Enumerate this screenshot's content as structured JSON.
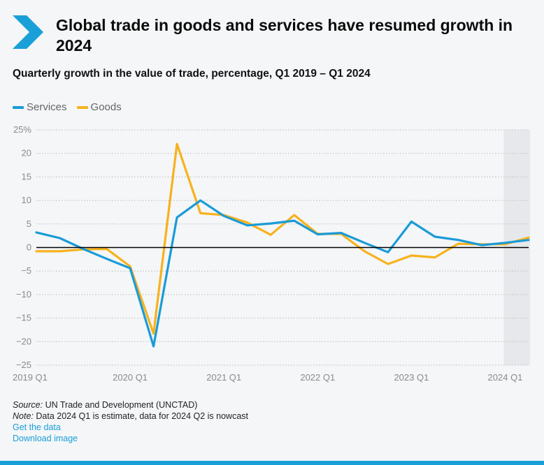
{
  "header": {
    "title": "Global trade in goods and services have resumed growth in 2024",
    "subtitle": "Quarterly growth in the value of trade, percentage, Q1 2019 – Q1 2024"
  },
  "legend": [
    {
      "label": "Services",
      "color": "#1a9bd7"
    },
    {
      "label": "Goods",
      "color": "#f7b21c"
    }
  ],
  "chart_data": {
    "type": "line",
    "title": "Quarterly growth in the value of trade, percentage, Q1 2019 – Q1 2024",
    "x": [
      "2019 Q1",
      "2019 Q2",
      "2019 Q3",
      "2019 Q4",
      "2020 Q1",
      "2020 Q2",
      "2020 Q3",
      "2020 Q4",
      "2021 Q1",
      "2021 Q2",
      "2021 Q3",
      "2021 Q4",
      "2022 Q1",
      "2022 Q2",
      "2022 Q3",
      "2022 Q4",
      "2023 Q1",
      "2023 Q2",
      "2023 Q3",
      "2023 Q4",
      "2024 Q1",
      "2024 Q2"
    ],
    "series": [
      {
        "name": "Services",
        "color": "#1a9bd7",
        "values": [
          3.2,
          2.0,
          -0.3,
          -2.4,
          -4.4,
          -21.0,
          6.4,
          10.0,
          6.7,
          4.7,
          5.1,
          5.7,
          2.8,
          3.1,
          1.0,
          -1.0,
          5.5,
          2.3,
          1.6,
          0.5,
          1.0,
          1.6
        ]
      },
      {
        "name": "Goods",
        "color": "#f7b21c",
        "values": [
          -0.8,
          -0.8,
          -0.4,
          -0.3,
          -4.0,
          -18.3,
          22.0,
          7.3,
          6.9,
          5.3,
          2.7,
          6.9,
          2.9,
          2.9,
          -0.8,
          -3.5,
          -1.7,
          -2.1,
          0.8,
          0.7,
          0.7,
          2.1
        ]
      }
    ],
    "xticks": [
      "2019 Q1",
      "2020 Q1",
      "2021 Q1",
      "2022 Q1",
      "2023 Q1",
      "2024 Q1"
    ],
    "yticks": [
      "25%",
      "20",
      "15",
      "10",
      "5",
      "0",
      "−5",
      "−10",
      "−15",
      "−20",
      "−25"
    ],
    "ylim": [
      -25,
      25
    ],
    "grid": "horizontal-dotted",
    "shaded_region": {
      "from": "2024 Q1",
      "to": "2024 Q2",
      "note": "nowcast"
    }
  },
  "footer": {
    "source_label": "Source:",
    "source_text": " UN Trade and Development (UNCTAD)",
    "note_label": "Note:",
    "note_text": " Data 2024 Q1 is estimate, data for 2024 Q2 is nowcast",
    "link_data": "Get the data",
    "link_image": "Download image"
  },
  "colors": {
    "accent": "#1aa0d8",
    "services": "#1a9bd7",
    "goods": "#f7b21c"
  }
}
